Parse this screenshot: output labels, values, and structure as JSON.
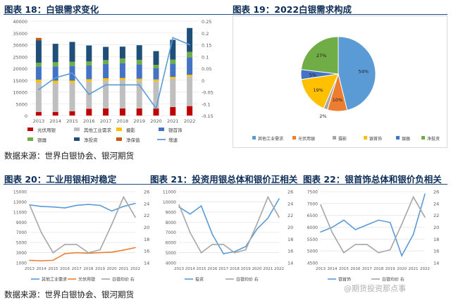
{
  "titles": {
    "fig18": "图表 18：白银需求变化",
    "fig19": "图表 19：2022白银需求构成",
    "fig20": "图表 20：工业用银相对稳定",
    "fig21": "图表 21：投资用银总体和银价正相关",
    "fig22": "图表 22：银首饰总体和银价负相关"
  },
  "source1": "数据来源：世界白银协会、银河期货",
  "source2": "数据来源：世界白银协会、银河期货",
  "watermark": "@期货投资那点事",
  "colors": {
    "photo": "#c00000",
    "industrial": "#bfbfbf",
    "imaging": "#ffc000",
    "jewelry": "#4472c4",
    "coins": "#70ad47",
    "investment": "#1f4e79",
    "hedge": "#c55a11",
    "growth": "#5b9bd5",
    "silver_price": "#a6a6a6"
  },
  "chart_data": [
    {
      "id": "fig18",
      "type": "bar",
      "stacked": true,
      "categories": [
        "2013",
        "2014",
        "2015",
        "2016",
        "2017",
        "2018",
        "2019",
        "2020",
        "2021",
        "2022"
      ],
      "ylim": [
        0,
        40000
      ],
      "yticks": [
        "0",
        "5000",
        "10000",
        "15000",
        "20000",
        "25000",
        "30000",
        "35000",
        "40000"
      ],
      "y2lim": [
        -0.15,
        0.25
      ],
      "y2ticks": [
        "-0.15",
        "-0.1",
        "-0.05",
        "0",
        "0.05",
        "0.1",
        "0.15",
        "0.2",
        "0.25"
      ],
      "series": [
        {
          "name": "光伏用银",
          "key": "photo",
          "values": [
            1500,
            1500,
            1800,
            2900,
            3000,
            3000,
            3000,
            3000,
            3600,
            4000
          ]
        },
        {
          "name": "其他工业需求",
          "key": "industrial",
          "values": [
            12500,
            12200,
            12000,
            11500,
            11800,
            12000,
            11700,
            11500,
            12000,
            12500
          ]
        },
        {
          "name": "摄影",
          "key": "imaging",
          "values": [
            1200,
            1100,
            1000,
            1000,
            1000,
            900,
            900,
            800,
            800,
            800
          ]
        },
        {
          "name": "银首饰",
          "key": "jewelry",
          "values": [
            5600,
            6000,
            6200,
            5800,
            6000,
            6300,
            6100,
            4700,
            5600,
            7400
          ]
        },
        {
          "name": "银器",
          "key": "coins",
          "values": [
            1600,
            1800,
            1800,
            1700,
            1700,
            2000,
            1900,
            1500,
            1700,
            2300
          ]
        },
        {
          "name": "净投资",
          "key": "investment",
          "values": [
            9500,
            7800,
            8400,
            6800,
            5600,
            5000,
            6200,
            5800,
            8400,
            10100
          ]
        },
        {
          "name": "净保值",
          "key": "hedge",
          "values": [
            1000,
            0,
            0,
            0,
            0,
            0,
            0,
            0,
            0,
            0
          ]
        }
      ],
      "line": {
        "name": "增速",
        "key": "growth",
        "values": [
          -0.04,
          0.01,
          0.03,
          -0.06,
          -0.02,
          -0.02,
          -0.02,
          -0.12,
          0.18,
          0.15
        ]
      },
      "legend": [
        "光伏用银",
        "其他工业需求",
        "摄影",
        "银首饰",
        "银器",
        "净投资",
        "净保值",
        "增速"
      ]
    },
    {
      "id": "fig19",
      "type": "pie",
      "slices": [
        {
          "name": "其他工业需求",
          "key": "industrial",
          "value": 54,
          "label": "54%"
        },
        {
          "name": "光伏用银",
          "key": "photo",
          "value": 10,
          "label": "10%"
        },
        {
          "name": "摄影",
          "key": "imaging",
          "value": 2,
          "label": "2%"
        },
        {
          "name": "银首饰",
          "key": "jewelry",
          "value": 19,
          "label": "19%"
        },
        {
          "name": "银器",
          "key": "coins",
          "value": 5,
          "label": "5%"
        },
        {
          "name": "净投资",
          "key": "investment",
          "value": 27,
          "label": "27%"
        }
      ],
      "slice_colors": [
        "#5b9bd5",
        "#ed7d31",
        "#a5a5a5",
        "#ffc000",
        "#4472c4",
        "#70ad47"
      ],
      "legend": [
        "其他工业需求",
        "光伏用银",
        "摄影",
        "银首饰",
        "银器",
        "净投资"
      ]
    },
    {
      "id": "fig20",
      "type": "line",
      "x": [
        "2013",
        "2014",
        "2015",
        "2016",
        "2017",
        "2018",
        "2019",
        "2020",
        "2021",
        "2022"
      ],
      "ylim": [
        1000,
        15000
      ],
      "yticks": [
        "1000",
        "3000",
        "5000",
        "7000",
        "9000",
        "11000",
        "13000",
        "15000"
      ],
      "y2lim": [
        14,
        26
      ],
      "y2ticks": [
        "14",
        "16",
        "18",
        "20",
        "22",
        "24",
        "26"
      ],
      "series": [
        {
          "name": "其他工业需求",
          "axis": "left",
          "color": "#5b9bd5",
          "values": [
            12400,
            12100,
            12000,
            11800,
            12300,
            12500,
            12300,
            11200,
            12100,
            12700
          ]
        },
        {
          "name": "光伏用银",
          "axis": "left",
          "color": "#ed7d31",
          "values": [
            1500,
            1400,
            1500,
            2800,
            3000,
            2900,
            3000,
            3100,
            3500,
            4000
          ]
        },
        {
          "name": "白银均价 右",
          "axis": "right",
          "color": "#a6a6a6",
          "values": [
            23.8,
            19.1,
            15.7,
            17.1,
            17.1,
            15.7,
            16.2,
            20.5,
            25.1,
            21.7
          ]
        }
      ],
      "legend": [
        "其他工业需求",
        "光伏用银",
        "白银均价 右"
      ]
    },
    {
      "id": "fig21",
      "type": "line",
      "x": [
        "2013",
        "2014",
        "2015",
        "2016",
        "2017",
        "2018",
        "2019",
        "2020",
        "2021",
        "2022"
      ],
      "ylim": [
        4000,
        11000
      ],
      "yticks": [
        "4000",
        "5000",
        "6000",
        "7000",
        "8000",
        "9000",
        "10000",
        "11000"
      ],
      "y2lim": [
        14,
        26
      ],
      "y2ticks": [
        "14",
        "16",
        "18",
        "20",
        "22",
        "24",
        "26"
      ],
      "series": [
        {
          "name": "投资",
          "axis": "left",
          "color": "#5b9bd5",
          "values": [
            9500,
            8800,
            9600,
            6800,
            4900,
            5100,
            5600,
            7300,
            8400,
            10300
          ]
        },
        {
          "name": "白银均价 右",
          "axis": "right",
          "color": "#a6a6a6",
          "values": [
            23.8,
            19.1,
            15.7,
            17.1,
            17.1,
            15.7,
            16.2,
            20.5,
            25.1,
            21.7
          ]
        }
      ],
      "legend": [
        "投资",
        "白银均价 右"
      ]
    },
    {
      "id": "fig22",
      "type": "line",
      "x": [
        "2013",
        "2014",
        "2015",
        "2016",
        "2017",
        "2018",
        "2019",
        "2020",
        "2021",
        "2022"
      ],
      "ylim": [
        4500,
        7500
      ],
      "yticks": [
        "4500",
        "5000",
        "5500",
        "6000",
        "6500",
        "7000",
        "7500"
      ],
      "y2lim": [
        14,
        26
      ],
      "y2ticks": [
        "14",
        "16",
        "18",
        "20",
        "22",
        "24",
        "26"
      ],
      "series": [
        {
          "name": "银首饰",
          "axis": "left",
          "color": "#5b9bd5",
          "values": [
            5800,
            6000,
            6300,
            5900,
            6100,
            6300,
            6200,
            4800,
            5700,
            7400
          ]
        },
        {
          "name": "白银均价 右",
          "axis": "right",
          "color": "#a6a6a6",
          "values": [
            23.8,
            19.1,
            15.7,
            17.1,
            17.1,
            15.7,
            16.2,
            20.5,
            25.1,
            21.7
          ]
        }
      ],
      "legend": [
        "银首饰",
        "白银均价 右"
      ]
    }
  ]
}
